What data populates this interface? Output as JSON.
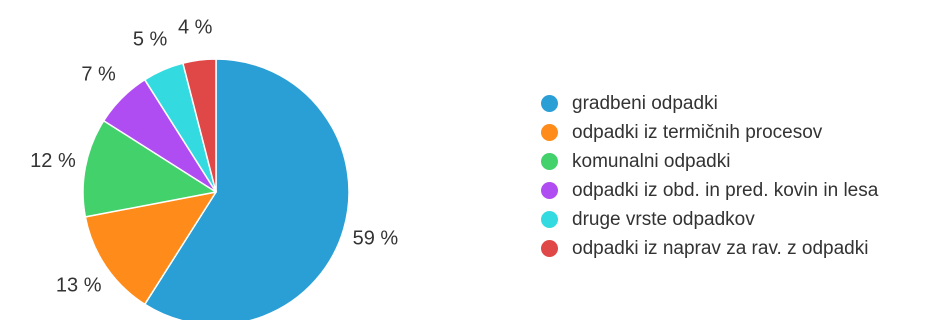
{
  "chart_data": {
    "type": "pie",
    "start_angle_deg": 0,
    "direction": "clockwise",
    "slices": [
      {
        "label": "gradbeni odpadki",
        "value": 59,
        "value_label": "59 %",
        "color": "#2a9fd6"
      },
      {
        "label": "odpadki iz termičnih procesov",
        "value": 13,
        "value_label": "13 %",
        "color": "#ff8c1a"
      },
      {
        "label": "komunalni odpadki",
        "value": 12,
        "value_label": "12 %",
        "color": "#42d16b"
      },
      {
        "label": "odpadki iz obd. in pred. kovin in lesa",
        "value": 7,
        "value_label": "7 %",
        "color": "#b04df2"
      },
      {
        "label": "druge vrste odpadkov",
        "value": 5,
        "value_label": "5 %",
        "color": "#33dbe0"
      },
      {
        "label": "odpadki iz naprav za rav. z odpadki",
        "value": 4,
        "value_label": "4 %",
        "color": "#e04848"
      }
    ],
    "legend_position": "right",
    "title": ""
  }
}
